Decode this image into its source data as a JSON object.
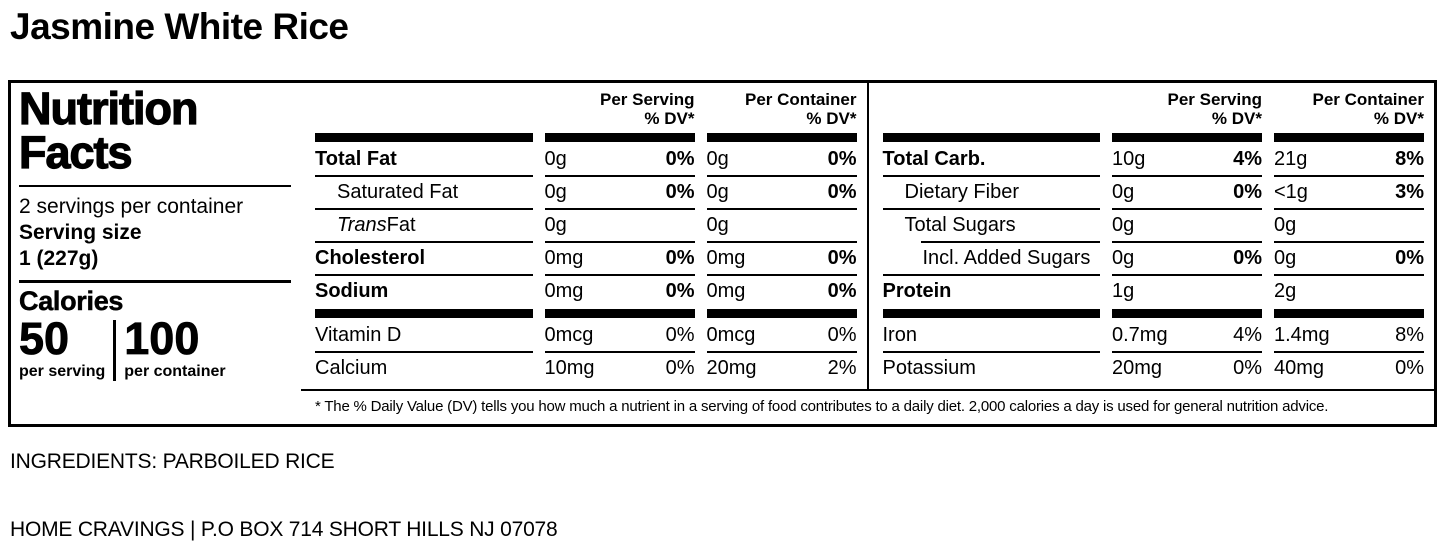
{
  "colors": {
    "text": "#000000",
    "background": "#ffffff"
  },
  "page": {
    "title": "Jasmine White Rice",
    "ingredients": "INGREDIENTS: PARBOILED RICE",
    "footer": "HOME CRAVINGS | P.O BOX 714 SHORT HILLS NJ 07078"
  },
  "label": {
    "heading": {
      "line1": "Nutrition",
      "line2": "Facts"
    },
    "servings_per_container": "2 servings per container",
    "serving_size_label": "Serving size",
    "serving_size_value": "1 (227g)",
    "calories": {
      "label": "Calories",
      "per_serving_value": "50",
      "per_serving_label": "per serving",
      "per_container_value": "100",
      "per_container_label": "per container"
    },
    "column_headers": {
      "per_serving": "Per Serving",
      "per_container": "Per Container",
      "dv": "% DV*"
    },
    "footnote": "* The % Daily Value (DV) tells you how much a nutrient in a serving of food contributes to a daily diet. 2,000 calories a day is used for general nutrition advice."
  },
  "nutrient_tables": {
    "left": [
      {
        "name": "Total Fat",
        "bold": true,
        "sep": "thick",
        "serving": {
          "amount": "0g",
          "dv": "0%",
          "dv_bold": true
        },
        "container": {
          "amount": "0g",
          "dv": "0%",
          "dv_bold": true
        }
      },
      {
        "name": "Saturated Fat",
        "indent": 1,
        "sep": "thin",
        "serving": {
          "amount": "0g",
          "dv": "0%",
          "dv_bold": true
        },
        "container": {
          "amount": "0g",
          "dv": "0%",
          "dv_bold": true
        }
      },
      {
        "name_italic_prefix": "Trans",
        "name": " Fat",
        "indent": 1,
        "sep": "thin",
        "serving": {
          "amount": "0g",
          "dv": ""
        },
        "container": {
          "amount": "0g",
          "dv": ""
        }
      },
      {
        "name": "Cholesterol",
        "bold": true,
        "sep": "thin",
        "serving": {
          "amount": "0mg",
          "dv": "0%",
          "dv_bold": true
        },
        "container": {
          "amount": "0mg",
          "dv": "0%",
          "dv_bold": true
        }
      },
      {
        "name": "Sodium",
        "bold": true,
        "sep": "thin",
        "serving": {
          "amount": "0mg",
          "dv": "0%",
          "dv_bold": true
        },
        "container": {
          "amount": "0mg",
          "dv": "0%",
          "dv_bold": true
        }
      },
      {
        "name": "Vitamin D",
        "sep": "thick",
        "serving": {
          "amount": "0mcg",
          "dv": "0%"
        },
        "container": {
          "amount": "0mcg",
          "dv": "0%"
        }
      },
      {
        "name": "Calcium",
        "sep": "thin",
        "serving": {
          "amount": "10mg",
          "dv": "0%"
        },
        "container": {
          "amount": "20mg",
          "dv": "2%"
        }
      }
    ],
    "right": [
      {
        "name": "Total Carb.",
        "bold": true,
        "sep": "thick",
        "serving": {
          "amount": "10g",
          "dv": "4%",
          "dv_bold": true
        },
        "container": {
          "amount": "21g",
          "dv": "8%",
          "dv_bold": true
        }
      },
      {
        "name": "Dietary Fiber",
        "indent": 1,
        "sep": "thin",
        "serving": {
          "amount": "0g",
          "dv": "0%",
          "dv_bold": true
        },
        "container": {
          "amount": "<1g",
          "dv": "3%",
          "dv_bold": true
        }
      },
      {
        "name": "Total Sugars",
        "indent": 1,
        "sep": "thin",
        "serving": {
          "amount": "0g",
          "dv": ""
        },
        "container": {
          "amount": "0g",
          "dv": ""
        }
      },
      {
        "name": "Incl. Added Sugars",
        "indent": 2,
        "sep": "thin-indent",
        "serving": {
          "amount": "0g",
          "dv": "0%",
          "dv_bold": true
        },
        "container": {
          "amount": "0g",
          "dv": "0%",
          "dv_bold": true
        }
      },
      {
        "name": "Protein",
        "bold": true,
        "sep": "thin",
        "serving": {
          "amount": "1g",
          "dv": ""
        },
        "container": {
          "amount": "2g",
          "dv": ""
        }
      },
      {
        "name": "Iron",
        "sep": "thick",
        "serving": {
          "amount": "0.7mg",
          "dv": "4%"
        },
        "container": {
          "amount": "1.4mg",
          "dv": "8%"
        }
      },
      {
        "name": "Potassium",
        "sep": "thin",
        "serving": {
          "amount": "20mg",
          "dv": "0%"
        },
        "container": {
          "amount": "40mg",
          "dv": "0%"
        }
      }
    ]
  }
}
